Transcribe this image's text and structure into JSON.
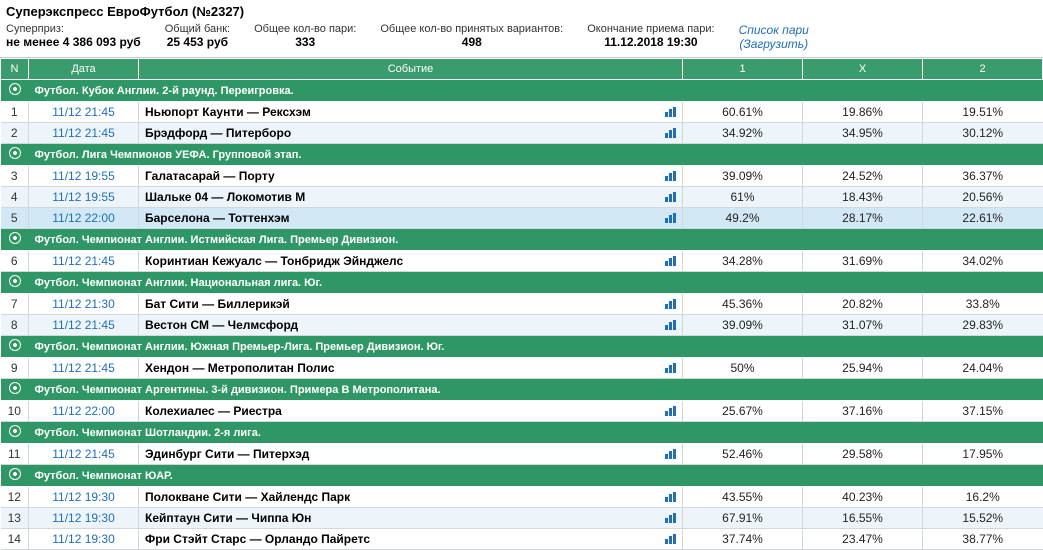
{
  "title": "Суперэкспресс ЕвроФутбол (№2327)",
  "summary": [
    {
      "label": "Суперприз:",
      "value": "не менее 4 386 093 руб"
    },
    {
      "label": "Общий банк:",
      "value": "25 453 руб"
    },
    {
      "label": "Общее кол-во пари:",
      "value": "333"
    },
    {
      "label": "Общее кол-во принятых вариантов:",
      "value": "498"
    },
    {
      "label": "Окончание приема пари:",
      "value": "11.12.2018 19:30"
    }
  ],
  "link": {
    "main": "Список пари",
    "sub": "(Загрузить)"
  },
  "columns": {
    "n": "N",
    "date": "Дата",
    "event": "Событие",
    "c1": "1",
    "cx": "X",
    "c2": "2"
  },
  "sections": [
    {
      "title": "Футбол. Кубок Англии. 2-й раунд. Переигровка.",
      "rows": [
        {
          "n": "1",
          "date": "11/12 21:45",
          "event": "Ньюпорт Каунти — Рексхэм",
          "o1": "60.61%",
          "ox": "19.86%",
          "o2": "19.51%"
        },
        {
          "n": "2",
          "date": "11/12 21:45",
          "event": "Брэдфорд — Питерборо",
          "o1": "34.92%",
          "ox": "34.95%",
          "o2": "30.12%"
        }
      ]
    },
    {
      "title": "Футбол. Лига Чемпионов УЕФА. Групповой этап.",
      "rows": [
        {
          "n": "3",
          "date": "11/12 19:55",
          "event": "Галатасарай — Порту",
          "o1": "39.09%",
          "ox": "24.52%",
          "o2": "36.37%"
        },
        {
          "n": "4",
          "date": "11/12 19:55",
          "event": "Шальке 04 — Локомотив М",
          "o1": "61%",
          "ox": "18.43%",
          "o2": "20.56%"
        },
        {
          "n": "5",
          "date": "11/12 22:00",
          "event": "Барселона — Тоттенхэм",
          "o1": "49.2%",
          "ox": "28.17%",
          "o2": "22.61%",
          "highlight": true
        }
      ]
    },
    {
      "title": "Футбол. Чемпионат Англии. Истмийская Лига. Премьер Дивизион.",
      "rows": [
        {
          "n": "6",
          "date": "11/12 21:45",
          "event": "Коринтиан Кежуалс — Тонбридж Эйнджелс",
          "o1": "34.28%",
          "ox": "31.69%",
          "o2": "34.02%"
        }
      ]
    },
    {
      "title": "Футбол. Чемпионат Англии. Национальная лига. Юг.",
      "rows": [
        {
          "n": "7",
          "date": "11/12 21:30",
          "event": "Бат Сити — Биллерикэй",
          "o1": "45.36%",
          "ox": "20.82%",
          "o2": "33.8%"
        },
        {
          "n": "8",
          "date": "11/12 21:45",
          "event": "Вестон СМ — Челмсфорд",
          "o1": "39.09%",
          "ox": "31.07%",
          "o2": "29.83%"
        }
      ]
    },
    {
      "title": "Футбол. Чемпионат Англии. Южная Премьер-Лига. Премьер Дивизион. Юг.",
      "rows": [
        {
          "n": "9",
          "date": "11/12 21:45",
          "event": "Хендон — Метрополитан Полис",
          "o1": "50%",
          "ox": "25.94%",
          "o2": "24.04%"
        }
      ]
    },
    {
      "title": "Футбол. Чемпионат Аргентины. 3-й дивизион. Примера B Метрополитана.",
      "rows": [
        {
          "n": "10",
          "date": "11/12 22:00",
          "event": "Колехиалес — Риестра",
          "o1": "25.67%",
          "ox": "37.16%",
          "o2": "37.15%"
        }
      ]
    },
    {
      "title": "Футбол. Чемпионат Шотландии. 2-я лига.",
      "rows": [
        {
          "n": "11",
          "date": "11/12 21:45",
          "event": "Эдинбург Сити — Питерхэд",
          "o1": "52.46%",
          "ox": "29.58%",
          "o2": "17.95%"
        }
      ]
    },
    {
      "title": "Футбол. Чемпионат ЮАР.",
      "rows": [
        {
          "n": "12",
          "date": "11/12 19:30",
          "event": "Полокване Сити — Хайлендс Парк",
          "o1": "43.55%",
          "ox": "40.23%",
          "o2": "16.2%"
        },
        {
          "n": "13",
          "date": "11/12 19:30",
          "event": "Кейптаун Сити — Чиппа Юн",
          "o1": "67.91%",
          "ox": "16.55%",
          "o2": "15.52%"
        },
        {
          "n": "14",
          "date": "11/12 19:30",
          "event": "Фри Стэйт Старс — Орландо Пайретс",
          "o1": "37.74%",
          "ox": "23.47%",
          "o2": "38.77%"
        }
      ]
    }
  ],
  "colors": {
    "header_bg": "#3a9c6c",
    "section_bg": "#2f9765",
    "row_alt_bg": "#eef5fa",
    "row_hl_bg": "#d3e8f5",
    "link_color": "#1e6fb8",
    "border_color": "#d0d8dc"
  }
}
